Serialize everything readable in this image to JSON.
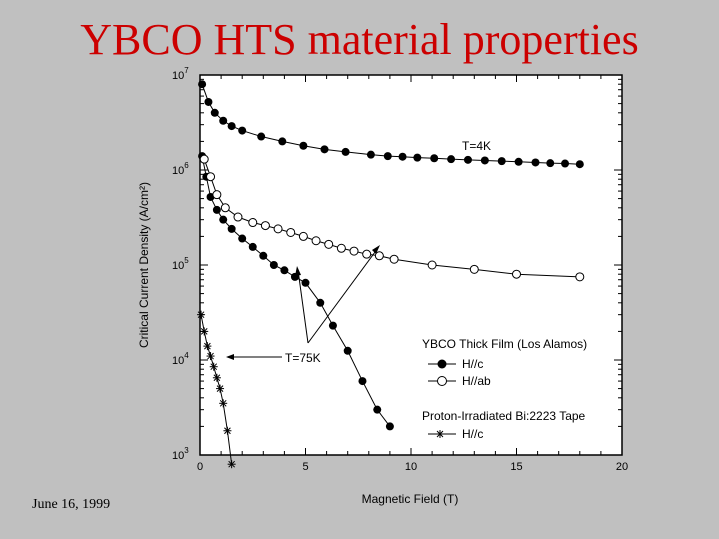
{
  "slide": {
    "title": "YBCO HTS material properties",
    "date": "June 16, 1999"
  },
  "chart_data": {
    "type": "scatter",
    "xlabel": "Magnetic Field (T)",
    "ylabel": "Critical Current Density (A/cm²)",
    "xlim": [
      0,
      20
    ],
    "ylim": [
      1000,
      10000000
    ],
    "yscale": "log",
    "grid": false,
    "x_ticks": [
      "0",
      "5",
      "10",
      "15",
      "20"
    ],
    "y_ticks": [
      {
        "base": "10",
        "exp": "3",
        "value": 1000
      },
      {
        "base": "10",
        "exp": "4",
        "value": 10000
      },
      {
        "base": "10",
        "exp": "5",
        "value": 100000
      },
      {
        "base": "10",
        "exp": "6",
        "value": 1000000
      },
      {
        "base": "10",
        "exp": "7",
        "value": 10000000
      }
    ],
    "legend": {
      "placement": "lower-right",
      "groups": [
        {
          "heading": "YBCO Thick Film (Los Alamos)",
          "entries": [
            {
              "label": "H//c",
              "marker": "filled-circle"
            },
            {
              "label": "H//ab",
              "marker": "open-circle"
            }
          ]
        },
        {
          "heading": "Proton-Irradiated Bi:2223 Tape",
          "entries": [
            {
              "label": "H//c",
              "marker": "star"
            }
          ]
        }
      ]
    },
    "annotations": [
      {
        "text": "T=4K",
        "x": 11.0,
        "y": 1500000
      },
      {
        "text": "T=75K",
        "x": 4.0,
        "y": 8000
      }
    ],
    "series": [
      {
        "marker": "filled-circle",
        "x": [
          0.1,
          0.4,
          0.7,
          1.1,
          1.5,
          2.0,
          2.9,
          3.9,
          4.9,
          5.9,
          6.9,
          8.1,
          8.9,
          9.6,
          10.3,
          11.1,
          11.9,
          12.7,
          13.5,
          14.3,
          15.1,
          15.9,
          16.6,
          17.3,
          18.0
        ],
        "y": [
          8000000,
          5200000,
          4000000,
          3300000,
          2900000,
          2600000,
          2250000,
          2000000,
          1800000,
          1650000,
          1550000,
          1450000,
          1400000,
          1380000,
          1350000,
          1330000,
          1300000,
          1280000,
          1260000,
          1240000,
          1220000,
          1200000,
          1180000,
          1170000,
          1150000
        ]
      },
      {
        "marker": "filled-circle",
        "x": [
          0.1,
          0.3,
          0.5,
          0.8,
          1.1,
          1.5,
          2.0,
          2.5,
          3.0,
          3.5,
          4.0,
          4.5,
          5.0,
          5.7,
          6.3,
          7.0,
          7.7,
          8.4,
          9.0
        ],
        "y": [
          1400000,
          850000,
          520000,
          380000,
          300000,
          240000,
          190000,
          155000,
          125000,
          100000,
          88000,
          75000,
          65000,
          40000,
          23000,
          12500,
          6000,
          3000,
          2000
        ]
      },
      {
        "marker": "open-circle",
        "x": [
          0.2,
          0.5,
          0.8,
          1.2,
          1.8,
          2.5,
          3.1,
          3.7,
          4.3,
          4.9,
          5.5,
          6.1,
          6.7,
          7.3,
          7.9,
          8.5,
          9.2,
          11.0,
          13.0,
          15.0,
          18.0
        ],
        "y": [
          1300000,
          850000,
          550000,
          400000,
          320000,
          280000,
          260000,
          240000,
          220000,
          200000,
          180000,
          165000,
          150000,
          140000,
          130000,
          125000,
          115000,
          100000,
          90000,
          80000,
          75000
        ]
      },
      {
        "marker": "star",
        "x": [
          0.05,
          0.2,
          0.35,
          0.5,
          0.65,
          0.8,
          0.95,
          1.1,
          1.3,
          1.5
        ],
        "y": [
          30000,
          20000,
          14000,
          11000,
          8500,
          6500,
          5000,
          3500,
          1800,
          800
        ]
      }
    ]
  }
}
